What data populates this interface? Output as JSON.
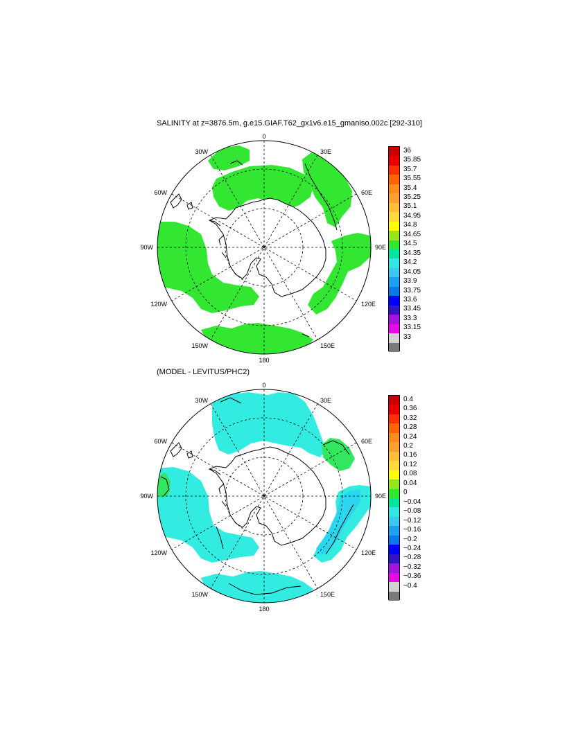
{
  "panel_top": {
    "title": "SALINITY at z=3876.5m, g.e15.GIAF.T62_gx1v6.e15_gmaniso.002c [292-310]",
    "lon_labels": {
      "lon_0": "0",
      "lon_30E": "30E",
      "lon_60E": "60E",
      "lon_90E": "90E",
      "lon_120E": "120E",
      "lon_150E": "150E",
      "lon_180": "180",
      "lon_150W": "150W",
      "lon_120W": "120W",
      "lon_90W": "90W",
      "lon_60W": "60W",
      "lon_30W": "30W"
    },
    "colorbar": {
      "labels": [
        "36",
        "35.85",
        "35.7",
        "35.55",
        "35.4",
        "35.25",
        "35.1",
        "34.95",
        "34.8",
        "34.65",
        "34.5",
        "34.35",
        "34.2",
        "34.05",
        "33.9",
        "33.75",
        "33.6",
        "33.45",
        "33.3",
        "33.15",
        "33"
      ],
      "colors": [
        "#c80000",
        "#e60000",
        "#ff3000",
        "#ff6400",
        "#ff8c1e",
        "#ffa032",
        "#ffbe3c",
        "#ffdc3c",
        "#ffff00",
        "#96e61e",
        "#32e632",
        "#00e6a0",
        "#32e6e6",
        "#3cc8f0",
        "#1ea0f0",
        "#0a78e6",
        "#0000ff",
        "#3214c8",
        "#a014dc",
        "#e60ae6",
        "#d2d2d2",
        "#7a7a7a"
      ]
    }
  },
  "panel_bottom": {
    "title": "(MODEL - LEVITUS/PHC2)",
    "lon_labels": {
      "lon_0": "0",
      "lon_30E": "30E",
      "lon_60E": "60E",
      "lon_90E": "90E",
      "lon_120E": "120E",
      "lon_150E": "150E",
      "lon_180": "180",
      "lon_150W": "150W",
      "lon_120W": "120W",
      "lon_90W": "90W",
      "lon_60W": "60W",
      "lon_30W": "30W"
    },
    "colorbar": {
      "labels": [
        "0.4",
        "0.36",
        "0.32",
        "0.28",
        "0.24",
        "0.2",
        "0.16",
        "0.12",
        "0.08",
        "0.04",
        "0",
        "−0.04",
        "−0.08",
        "−0.12",
        "−0.16",
        "−0.2",
        "−0.24",
        "−0.28",
        "−0.32",
        "−0.36",
        "−0.4"
      ],
      "colors": [
        "#c80000",
        "#e60000",
        "#ff3000",
        "#ff6400",
        "#ff8c1e",
        "#ffa032",
        "#ffbe3c",
        "#ffdc3c",
        "#ffff00",
        "#96e61e",
        "#32e632",
        "#00e6a0",
        "#32e6e6",
        "#3cc8f0",
        "#1ea0f0",
        "#0a78e6",
        "#0000ff",
        "#3214c8",
        "#a014dc",
        "#e60ae6",
        "#d2d2d2",
        "#7a7a7a"
      ]
    }
  },
  "fill_colors": {
    "top_field": "#32e632",
    "bottom_field": "#32ebe1",
    "bottom_field_dark": "#2ad7ee",
    "bottom_field_green": "#32e660"
  }
}
